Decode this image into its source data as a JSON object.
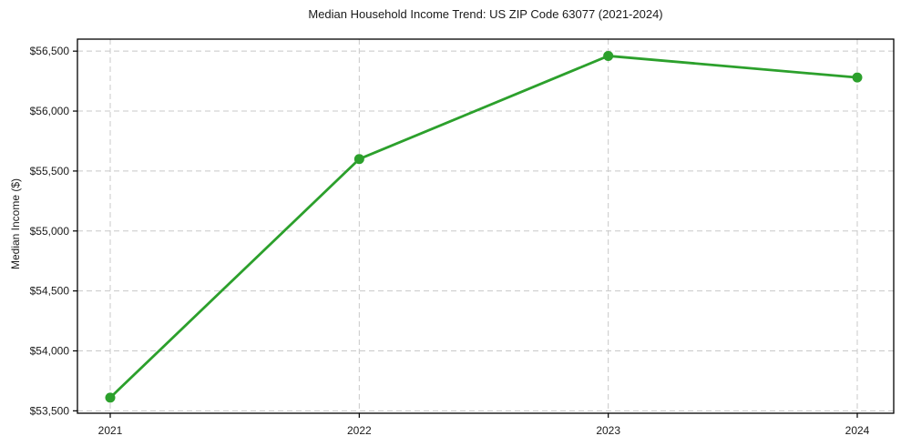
{
  "chart_data": {
    "type": "line",
    "title": "Median Household Income Trend: US ZIP Code 63077 (2021-2024)",
    "xlabel": "",
    "ylabel": "Median Income ($)",
    "categories": [
      "2021",
      "2022",
      "2023",
      "2024"
    ],
    "values": [
      53610,
      55600,
      56460,
      56280
    ],
    "yticks": [
      53500,
      54000,
      54500,
      55000,
      55500,
      56000,
      56500
    ],
    "ytick_labels": [
      "$53,500",
      "$54,000",
      "$54,500",
      "$55,000",
      "$55,500",
      "$56,000",
      "$56,500"
    ],
    "ylim": [
      53480,
      56600
    ],
    "grid": true,
    "grid_style": "dashed",
    "legend_position": "none",
    "colors": {
      "line": "#2ca02c",
      "marker": "#2ca02c",
      "grid": "#c8c8c8",
      "spine": "#000000",
      "text": "#1a1a1a",
      "background": "#ffffff"
    }
  }
}
